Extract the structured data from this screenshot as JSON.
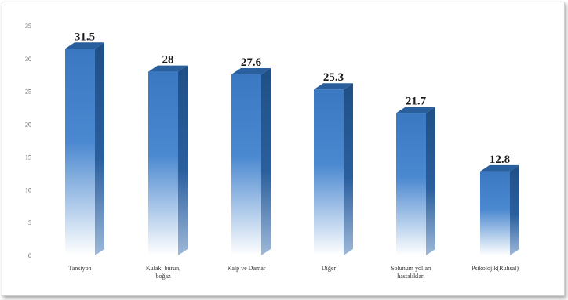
{
  "chart_data": {
    "type": "bar",
    "categories": [
      [
        "Tansiyon"
      ],
      [
        "Kulak, burun,",
        "boğaz"
      ],
      [
        "Kalp ve Damar"
      ],
      [
        "Diğer"
      ],
      [
        "Solunum yolları",
        "hastalıkları"
      ],
      [
        "Psikolojik(Ruhsal)"
      ]
    ],
    "values": [
      31.5,
      28,
      27.6,
      25.3,
      21.7,
      12.8
    ],
    "value_labels": [
      "31.5",
      "28",
      "27.6",
      "25.3",
      "21.7",
      "12.8"
    ],
    "ylim": [
      0,
      35
    ],
    "yticks": [
      0,
      5,
      10,
      15,
      20,
      25,
      30,
      35
    ],
    "grid": false,
    "bar_style": "3d-gradient",
    "colors": {
      "bar_top": "#3a78c2",
      "bar_fade": "#ffffff",
      "bar_side": "#1f4f86",
      "bar_cap": "#2a5f9e"
    }
  }
}
